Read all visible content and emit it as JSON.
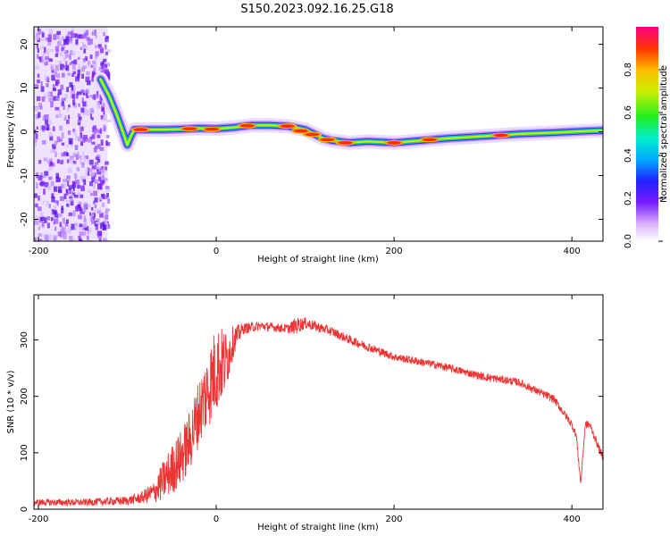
{
  "figure": {
    "title": "S150.2023.092.16.25.G18"
  },
  "chart_data": [
    {
      "type": "heatmap",
      "xlabel": "Height of straight line (km)",
      "ylabel": "Frequency (Hz)",
      "xlim": [
        -205,
        435
      ],
      "ylim": [
        -25,
        24
      ],
      "xticks": [
        -200,
        0,
        200,
        400
      ],
      "yticks": [
        -20,
        -10,
        0,
        10,
        20
      ],
      "colorbar": {
        "label": "Normalized spectral amplitude",
        "range": [
          0,
          1
        ],
        "ticks": [
          0.0,
          0.2,
          0.4,
          0.6,
          0.8
        ]
      },
      "noise_region": {
        "x_from": -205,
        "x_to": -122
      },
      "ridge": {
        "x": [
          -130,
          -120,
          -112,
          -105,
          -100,
          -96,
          -92,
          -85,
          -75,
          -60,
          -40,
          -20,
          0,
          20,
          40,
          60,
          80,
          100,
          110,
          120,
          130,
          150,
          170,
          200,
          230,
          260,
          300,
          340,
          380,
          420,
          435
        ],
        "y": [
          12,
          8,
          4,
          0,
          -3,
          -1,
          0.5,
          0.5,
          0.5,
          0.5,
          0.6,
          0.8,
          0.7,
          1,
          1.5,
          1.5,
          1.3,
          0.5,
          -0.5,
          -1.5,
          -2,
          -2.5,
          -2.2,
          -2.5,
          -2,
          -1.5,
          -1,
          -0.5,
          -0.2,
          0.2,
          0.3
        ]
      },
      "hot_spots": [
        {
          "x": -30,
          "y": 0.7
        },
        {
          "x": -5,
          "y": 0.6
        },
        {
          "x": 35,
          "y": 1.4
        },
        {
          "x": 80,
          "y": 1.3
        },
        {
          "x": 95,
          "y": 0.2
        },
        {
          "x": 108,
          "y": -0.6
        },
        {
          "x": 125,
          "y": -1.8
        },
        {
          "x": 145,
          "y": -2.5
        },
        {
          "x": 200,
          "y": -2.5
        },
        {
          "x": 240,
          "y": -1.8
        },
        {
          "x": 320,
          "y": -0.8
        },
        {
          "x": -85,
          "y": 0.5
        }
      ]
    },
    {
      "type": "line",
      "xlabel": "Height of straight line (km)",
      "ylabel": "SNR (10 * v/v)",
      "xlim": [
        -205,
        435
      ],
      "ylim": [
        0,
        380
      ],
      "xticks": [
        -200,
        0,
        200,
        400
      ],
      "yticks": [
        0,
        100,
        200,
        300
      ],
      "color": "#ee3333",
      "series": [
        {
          "x": [
            -205,
            -150,
            -100,
            -85,
            -70,
            -60,
            -50,
            -40,
            -30,
            -20,
            -10,
            0,
            10,
            20,
            30,
            50,
            80,
            90,
            100,
            130,
            150,
            200,
            250,
            300,
            340,
            380,
            400,
            405,
            410,
            415,
            420,
            430,
            435
          ],
          "y": [
            12,
            12,
            15,
            20,
            30,
            50,
            70,
            90,
            120,
            170,
            210,
            250,
            260,
            300,
            320,
            325,
            320,
            325,
            330,
            315,
            300,
            270,
            255,
            235,
            225,
            195,
            150,
            130,
            45,
            150,
            150,
            110,
            90
          ],
          "noise_amplitude": [
            6,
            6,
            8,
            10,
            20,
            35,
            45,
            50,
            55,
            60,
            70,
            80,
            60,
            25,
            10,
            8,
            8,
            15,
            10,
            8,
            8,
            7,
            7,
            7,
            7,
            7,
            7,
            7,
            5,
            7,
            7,
            7,
            7
          ]
        }
      ]
    }
  ]
}
